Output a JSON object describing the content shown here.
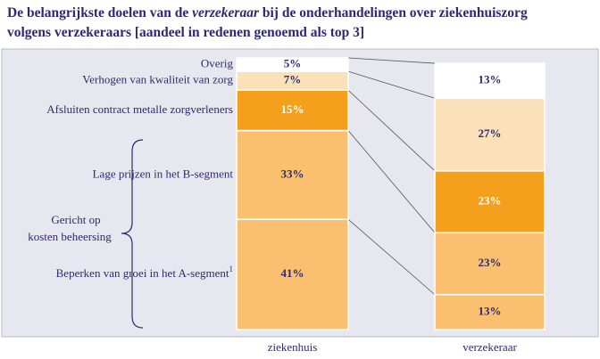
{
  "chart_data": {
    "type": "stacked-bar",
    "title": [
      "De belangrijkste doelen van de",
      "verzekeraar",
      "bij de onderhandelingen over ziekenhuiszorg",
      "volgens verzekeraars [aandeel in redenen genoemd als top 3]"
    ],
    "categories": [
      "ziekenhuis",
      "verzekeraar"
    ],
    "ylim": [
      0,
      101
    ],
    "series": [
      {
        "name": "Beperken van groei in het A-segment",
        "footnote_marker": "1",
        "color": "#fac06f",
        "label_color": "#2e2a6e",
        "values": [
          41,
          13
        ],
        "value_labels": [
          "41%",
          "13%"
        ]
      },
      {
        "name": "Lage prijzen in het B-segment",
        "color": "#fac06f",
        "label_color": "#2e2a6e",
        "values": [
          33,
          23
        ],
        "value_labels": [
          "33%",
          "23%"
        ]
      },
      {
        "name": "Afsluiten contract metalle zorgverleners",
        "color": "#f4a01c",
        "label_color": "#ffffff",
        "values": [
          15,
          23
        ],
        "value_labels": [
          "15%",
          "23%"
        ]
      },
      {
        "name": "Verhogen  van kwaliteit van zorg",
        "color": "#fbe1b9",
        "label_color": "#2e2a6e",
        "values": [
          7,
          27
        ],
        "value_labels": [
          "7%",
          "27%"
        ]
      },
      {
        "name": "Overig",
        "color": "#ffffff",
        "label_color": "#2e2a6e",
        "values": [
          5,
          13
        ],
        "value_labels": [
          "5%",
          "13%"
        ]
      }
    ],
    "annotation": [
      "Gericht op",
      "kosten beheersing"
    ]
  }
}
